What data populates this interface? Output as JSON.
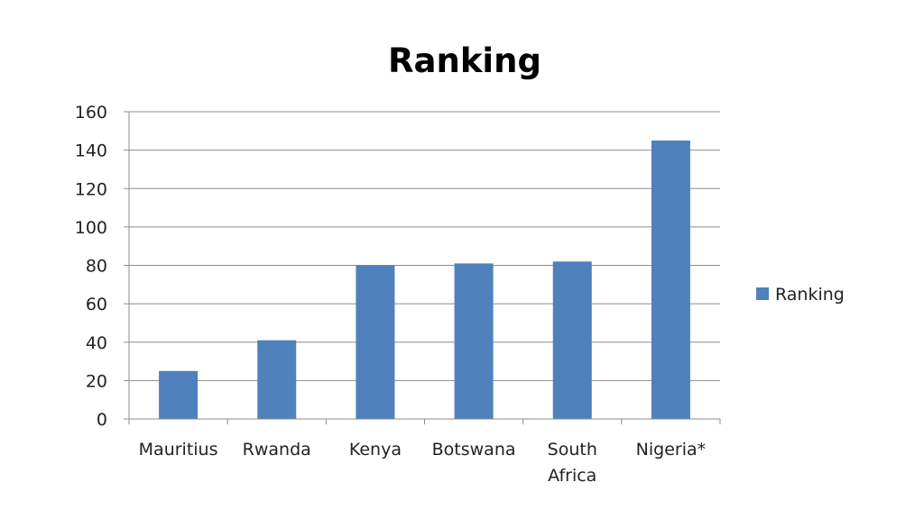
{
  "chart_data": {
    "type": "bar",
    "title": "Ranking",
    "categories": [
      [
        "Mauritius"
      ],
      [
        "Rwanda"
      ],
      [
        "Kenya"
      ],
      [
        "Botswana"
      ],
      [
        "South",
        "Africa"
      ],
      [
        "Nigeria*"
      ]
    ],
    "series": [
      {
        "name": "Ranking",
        "color": "#4F81BD",
        "values": [
          25,
          41,
          80,
          81,
          82,
          145
        ]
      }
    ],
    "ylim": [
      0,
      160
    ],
    "yticks": [
      "0",
      "20",
      "40",
      "60",
      "80",
      "100",
      "120",
      "140",
      "160"
    ],
    "grid": true,
    "legend": "right"
  }
}
